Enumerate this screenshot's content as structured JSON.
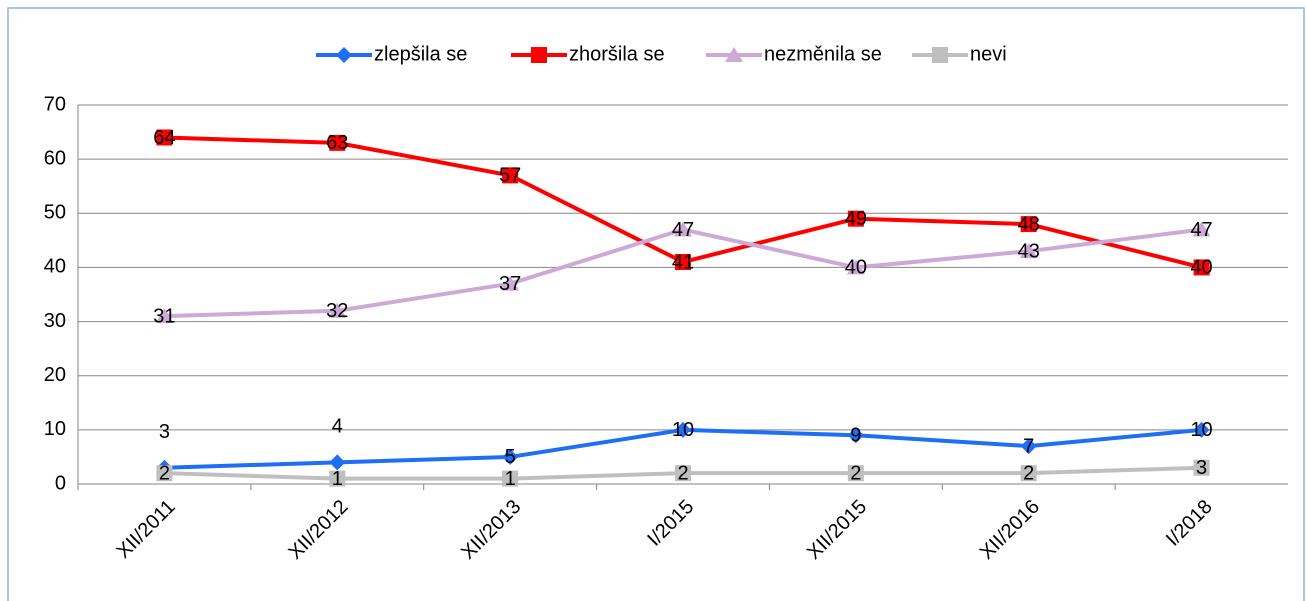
{
  "chart_data": {
    "type": "line",
    "categories": [
      "XII/2011",
      "XII/2012",
      "XII/2013",
      "I/2015",
      "XII/2015",
      "XII/2016",
      "I/2018"
    ],
    "series": [
      {
        "name": "zlepšila se",
        "color": "#1f6ff2",
        "marker": "diamond",
        "values": [
          3,
          4,
          5,
          10,
          9,
          7,
          10
        ]
      },
      {
        "name": "zhoršila se",
        "color": "#ff0000",
        "marker": "square",
        "values": [
          64,
          63,
          57,
          41,
          49,
          48,
          40
        ]
      },
      {
        "name": "nezměnila se",
        "color": "#cca9d6",
        "marker": "triangle",
        "values": [
          31,
          32,
          37,
          47,
          40,
          43,
          47
        ]
      },
      {
        "name": "nevi",
        "color": "#bfbfbf",
        "marker": "square",
        "values": [
          2,
          1,
          1,
          2,
          2,
          2,
          3
        ]
      }
    ],
    "ylim": [
      0,
      70
    ],
    "yticks": [
      0,
      10,
      20,
      30,
      40,
      50,
      60,
      70
    ],
    "grid": true,
    "legend": "top"
  }
}
